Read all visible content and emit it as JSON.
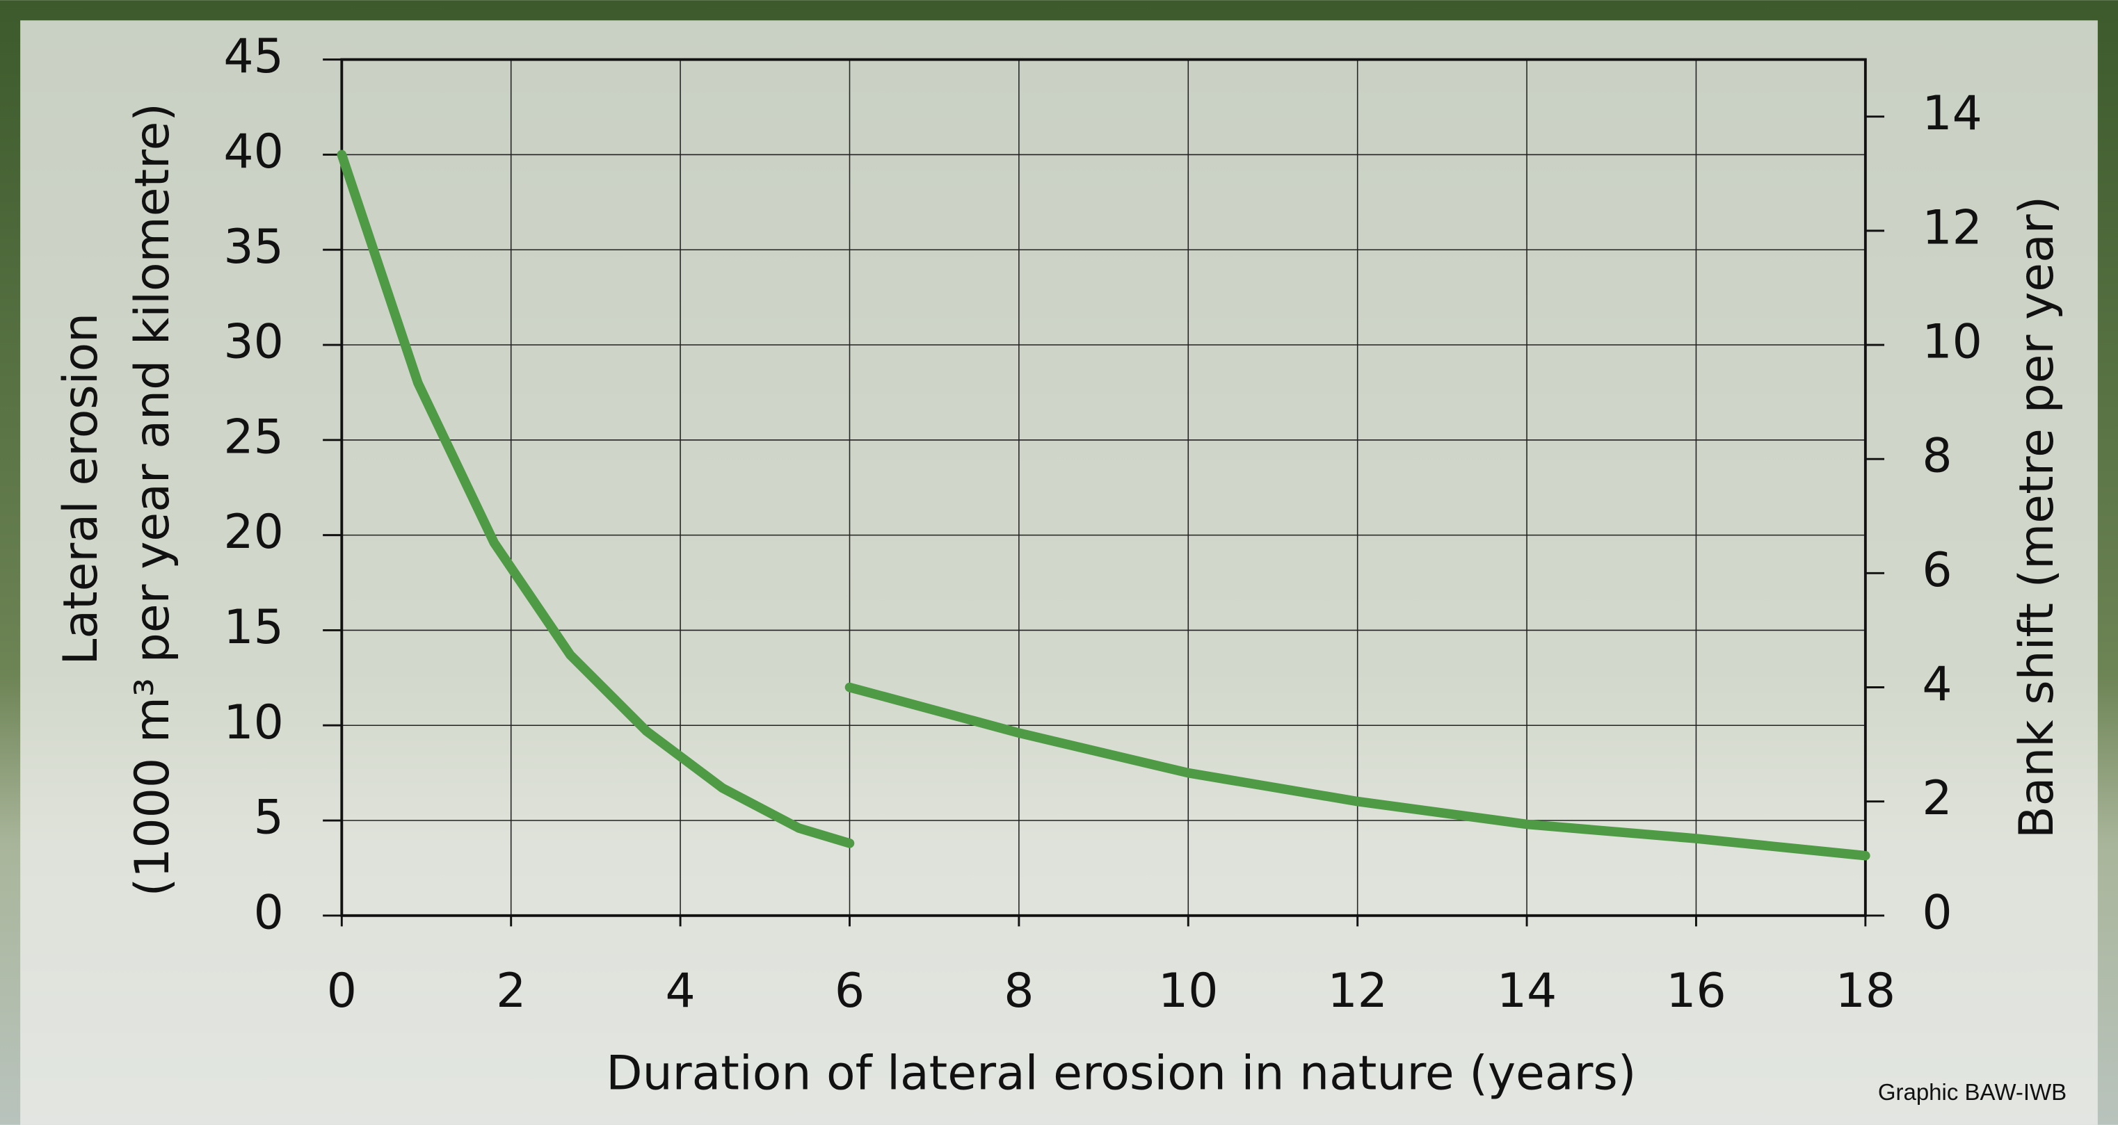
{
  "chart_data": {
    "type": "line",
    "xlabel": "Duration of lateral erosion in nature (years)",
    "ylabel": [
      "Lateral erosion",
      "(1000 m³ per year and kilometre)"
    ],
    "y2label": "Bank shift (metre per year)",
    "annotation": "Graphic BAW-IWB",
    "xlim": [
      0,
      18
    ],
    "xticks": [
      0,
      2,
      4,
      6,
      8,
      10,
      12,
      14,
      16,
      18
    ],
    "ylim": [
      0,
      45
    ],
    "yticks": [
      0,
      5,
      10,
      15,
      20,
      25,
      30,
      35,
      40,
      45
    ],
    "y2lim": [
      0,
      15
    ],
    "y2ticks": [
      0,
      2,
      4,
      6,
      8,
      10,
      12,
      14
    ],
    "grid": true,
    "series": [
      {
        "color": "#4f9a45",
        "x": [
          0,
          0.9,
          1.8,
          2.7,
          3.6,
          4.5,
          5.4,
          6
        ],
        "values": [
          40,
          28,
          19.6,
          13.7,
          9.7,
          6.7,
          4.6,
          3.8
        ]
      },
      {
        "color": "#4f9a45",
        "axis": "y2",
        "x": [
          6,
          8,
          10,
          12,
          14,
          16,
          18
        ],
        "values": [
          4.0,
          3.2,
          2.5,
          2.0,
          1.6,
          1.35,
          1.05
        ]
      }
    ]
  }
}
